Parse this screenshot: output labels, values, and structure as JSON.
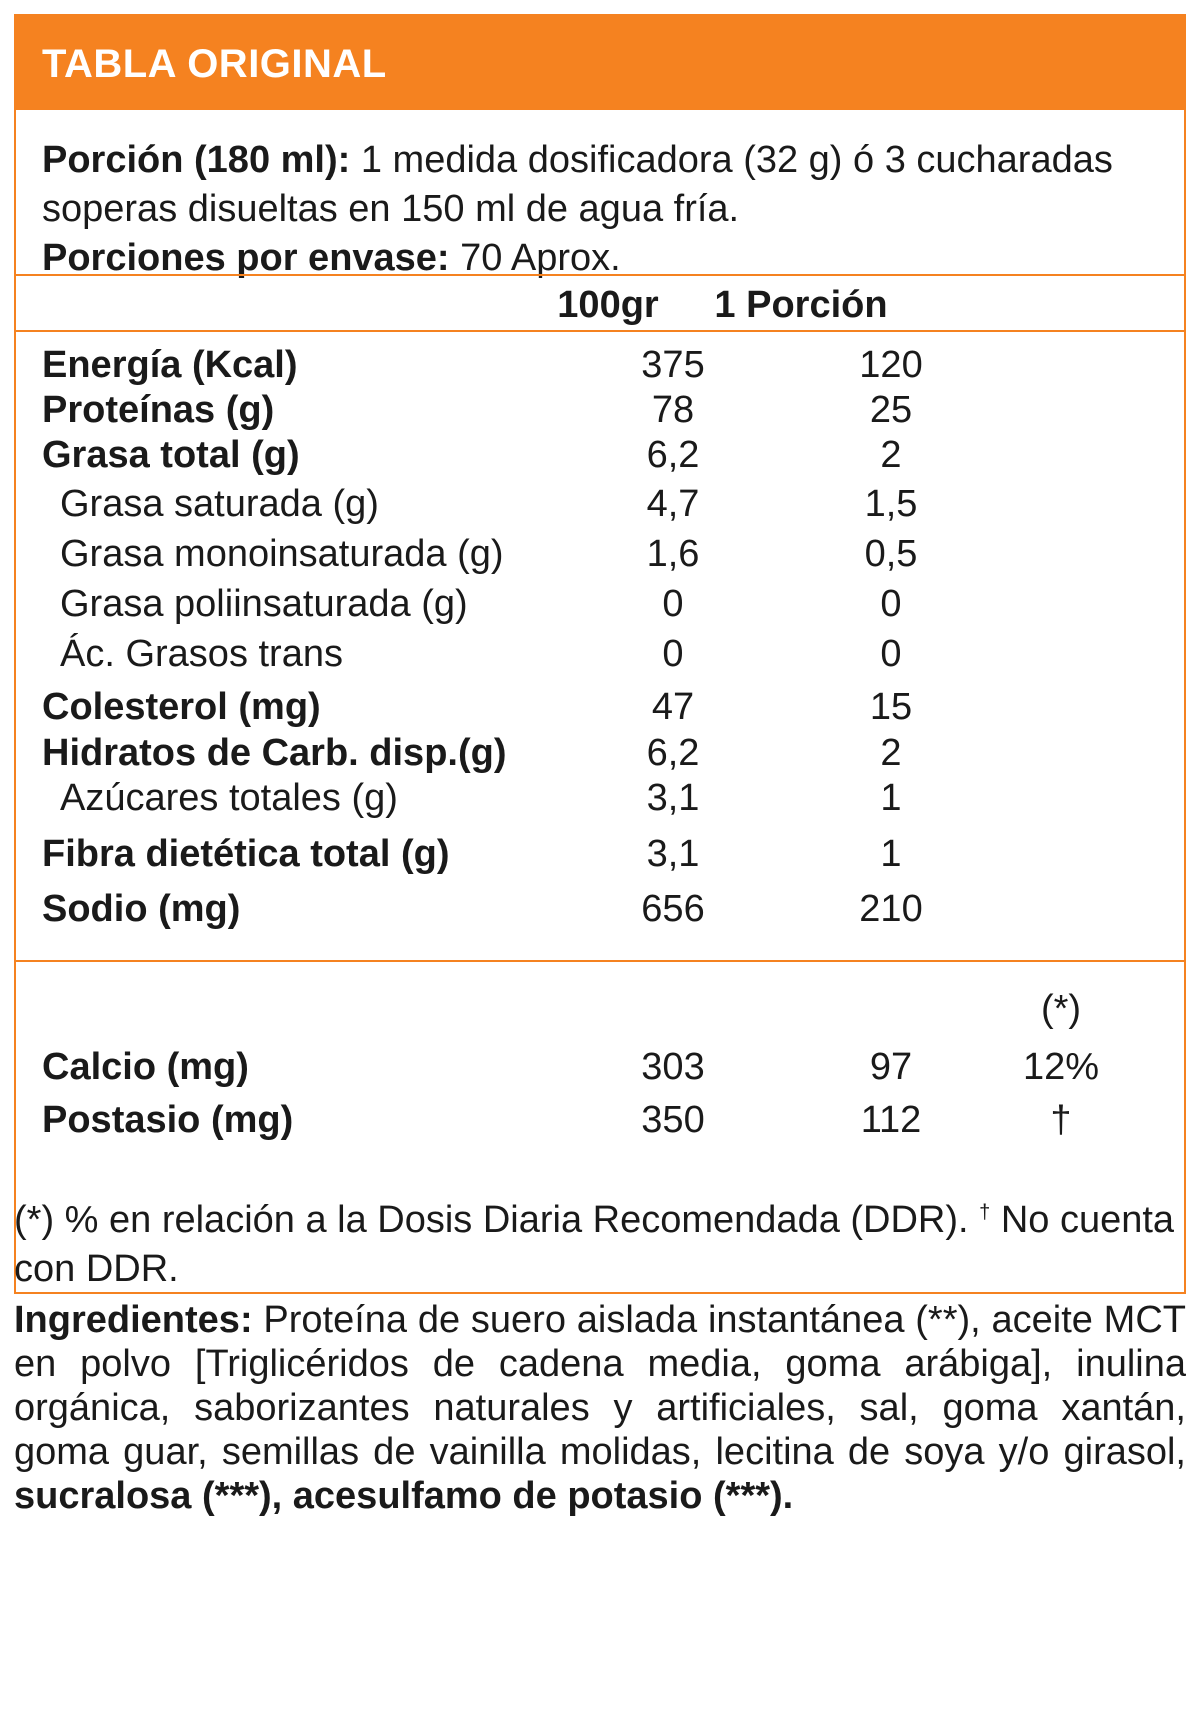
{
  "header": {
    "title": "TABLA ORIGINAL"
  },
  "intro": {
    "portion_label": "Porción (180 ml):",
    "portion_text": " 1 medida dosificadora (32 g) ó 3 cucharadas soperas disueltas en 150 ml de agua fría.",
    "servings_label": "Porciones por envase:",
    "servings_text": " 70 Aprox."
  },
  "columns": {
    "per100": "100gr",
    "per_portion": "1 Porción",
    "ddr_mark": "(*)"
  },
  "nutrients": [
    {
      "label": "Energía (Kcal)",
      "v100": "375",
      "vpor": "120"
    },
    {
      "label": "Proteínas (g)",
      "v100": "78",
      "vpor": "25"
    },
    {
      "label": "Grasa total (g)",
      "v100": "6,2",
      "vpor": "2"
    },
    {
      "label": "Grasa saturada (g)",
      "v100": "4,7",
      "vpor": "1,5"
    },
    {
      "label": "Grasa monoinsaturada (g)",
      "v100": "1,6",
      "vpor": "0,5"
    },
    {
      "label": "Grasa poliinsaturada (g)",
      "v100": "0",
      "vpor": "0"
    },
    {
      "label": "Ác. Grasos trans",
      "v100": "0",
      "vpor": "0"
    },
    {
      "label": "Colesterol (mg)",
      "v100": "47",
      "vpor": "15"
    },
    {
      "label": "Hidratos de Carb. disp.(g)",
      "v100": "6,2",
      "vpor": "2"
    },
    {
      "label": "Azúcares totales (g)",
      "v100": "3,1",
      "vpor": "1"
    },
    {
      "label": "Fibra dietética total (g)",
      "v100": "3,1",
      "vpor": "1"
    },
    {
      "label": "Sodio (mg)",
      "v100": "656",
      "vpor": "210"
    }
  ],
  "minerals": [
    {
      "label": "Calcio (mg)",
      "v100": "303",
      "vpor": "97",
      "ddr": "12%"
    },
    {
      "label": "Postasio (mg)",
      "v100": "350",
      "vpor": "112",
      "ddr": "†"
    }
  ],
  "footnote": {
    "part1": "(*) % en relación a la Dosis Diaria Recomendada (DDR). ",
    "dagger": "†",
    "part2": " No cuenta con DDR."
  },
  "ingredients": {
    "label": "Ingredientes:",
    "text": " Proteína de suero aislada instantánea (**), aceite MCT en polvo [Triglicéridos de cadena media, goma arábiga], inulina orgánica, saborizantes naturales y artificiales, sal, goma xantán, goma guar, semillas de vainilla molidas, lecitina de soya y/o girasol, ",
    "bold_end": "sucralosa (***), acesulfamo de potasio (***)."
  },
  "colors": {
    "accent": "#f58220",
    "text": "#1a1a1a",
    "header_text": "#ffffff"
  }
}
